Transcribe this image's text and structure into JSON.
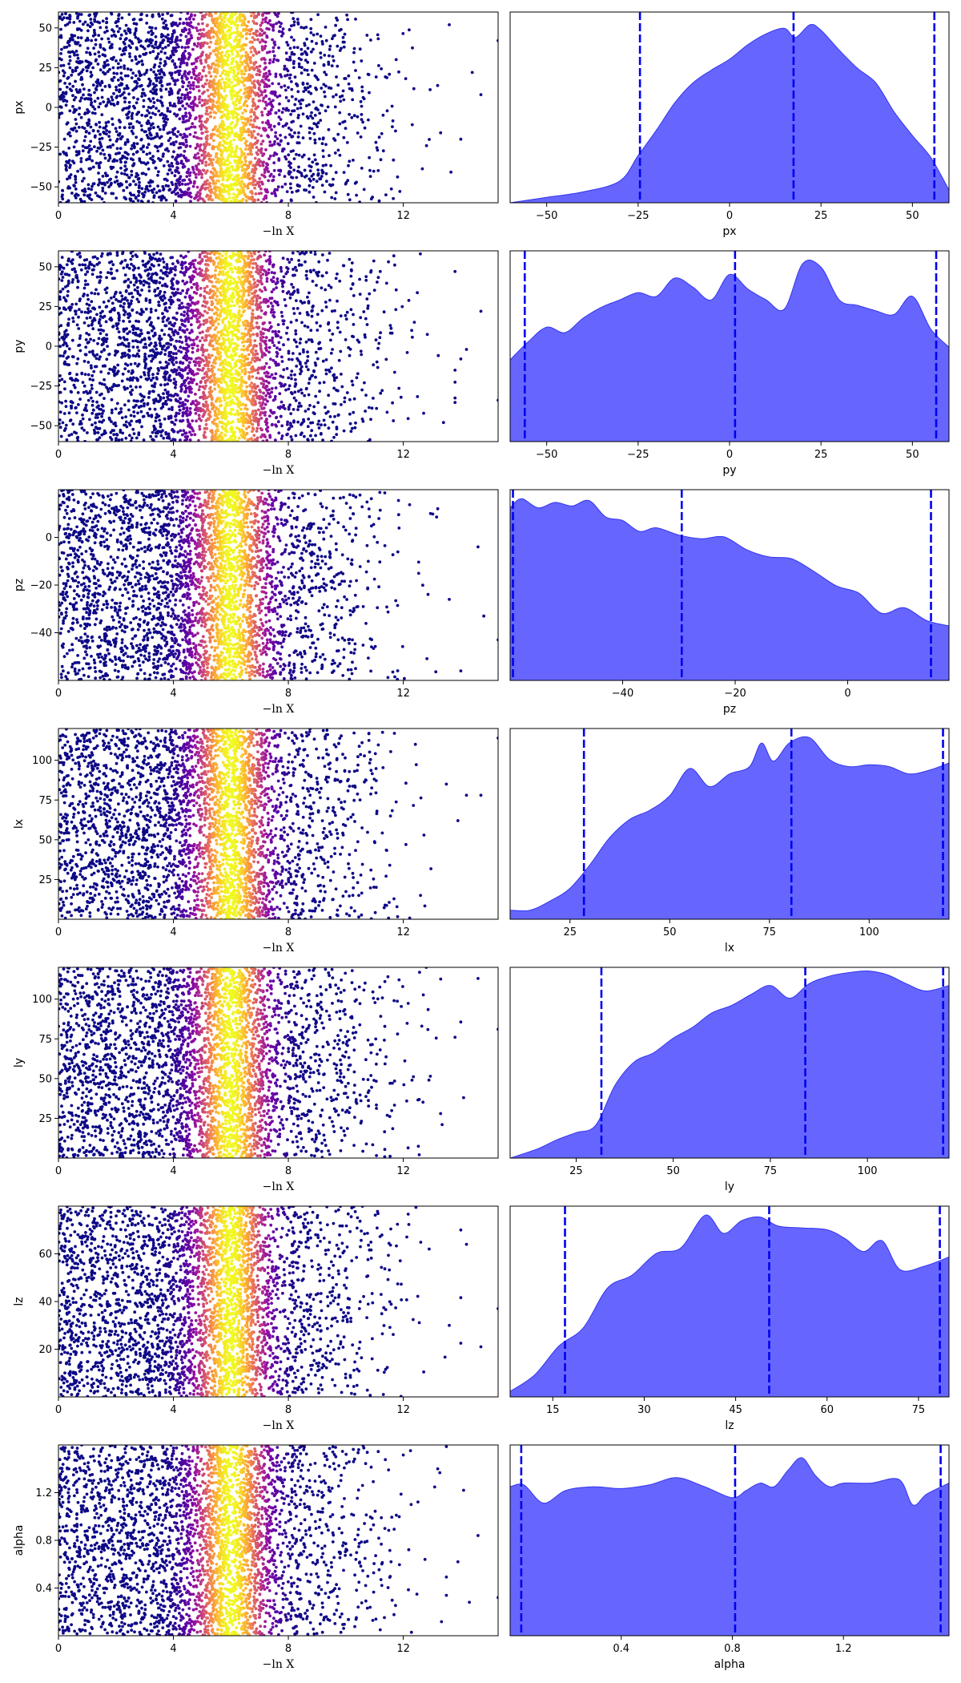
{
  "figure": {
    "background": "#ffffff",
    "n_panels": 7
  },
  "colors": {
    "kde_fill": "#6666ff",
    "kde_edge": "#3333ee",
    "quantile_line": "#0000ee",
    "scatter_colormap": "plasma",
    "scatter_low": "#0d0887",
    "scatter_high": "#f0f921"
  },
  "chart_data": [
    {
      "type": "scatter",
      "param": "px",
      "xlabel": "−ln X",
      "ylabel": "px",
      "xlim": [
        0,
        15.3
      ],
      "ylim": [
        -60,
        60
      ],
      "xticks": [
        0,
        4,
        8,
        12
      ],
      "xtick_labels": [
        "0",
        "4",
        "8",
        "12"
      ],
      "yticks": [
        -50,
        -25,
        0,
        25,
        50
      ],
      "ytick_labels": [
        "−50",
        "−25",
        "0",
        "25",
        "50"
      ],
      "x_extent": [
        0,
        14.2
      ],
      "peak_lnx": 6.0,
      "outliers": [
        [
          15.3,
          42
        ],
        [
          14.7,
          8
        ],
        [
          14.4,
          22
        ],
        [
          13.6,
          52
        ],
        [
          13.3,
          -16
        ],
        [
          14.0,
          -20
        ]
      ]
    },
    {
      "type": "area",
      "param": "px",
      "xlabel": "px",
      "xlim": [
        -60,
        60
      ],
      "xticks": [
        -50,
        -25,
        0,
        25,
        50
      ],
      "xtick_labels": [
        "−50",
        "−25",
        "0",
        "25",
        "50"
      ],
      "ylim": [
        0,
        1.05
      ],
      "density_x": [
        -60,
        -50,
        -40,
        -30,
        -25,
        -20,
        -15,
        -10,
        -5,
        0,
        5,
        10,
        15,
        18,
        22,
        25,
        30,
        35,
        40,
        45,
        50,
        55,
        60
      ],
      "density_y": [
        0.0,
        0.03,
        0.06,
        0.12,
        0.26,
        0.4,
        0.55,
        0.66,
        0.73,
        0.79,
        0.87,
        0.93,
        0.96,
        0.91,
        0.98,
        0.95,
        0.84,
        0.74,
        0.66,
        0.5,
        0.37,
        0.25,
        0.07
      ],
      "quantiles": [
        -24.5,
        17.5,
        56
      ]
    },
    {
      "type": "scatter",
      "param": "py",
      "xlabel": "−ln X",
      "ylabel": "py",
      "xlim": [
        0,
        15.3
      ],
      "ylim": [
        -60,
        60
      ],
      "xticks": [
        0,
        4,
        8,
        12
      ],
      "xtick_labels": [
        "0",
        "4",
        "8",
        "12"
      ],
      "yticks": [
        -50,
        -25,
        0,
        25,
        50
      ],
      "ytick_labels": [
        "−50",
        "−25",
        "0",
        "25",
        "50"
      ],
      "x_extent": [
        0,
        13.8
      ],
      "peak_lnx": 6.0,
      "outliers": [
        [
          15.3,
          -34
        ],
        [
          14.7,
          22
        ],
        [
          14.0,
          -8
        ],
        [
          13.8,
          47
        ],
        [
          13.4,
          -48
        ],
        [
          14.2,
          -2
        ]
      ]
    },
    {
      "type": "area",
      "param": "py",
      "xlabel": "py",
      "xlim": [
        -60,
        60
      ],
      "xticks": [
        -50,
        -25,
        0,
        25,
        50
      ],
      "xtick_labels": [
        "−50",
        "−25",
        "0",
        "25",
        "50"
      ],
      "ylim": [
        0,
        1.05
      ],
      "density_x": [
        -60,
        -55,
        -50,
        -45,
        -40,
        -35,
        -30,
        -25,
        -20,
        -15,
        -10,
        -5,
        0,
        5,
        10,
        15,
        20,
        25,
        30,
        35,
        40,
        45,
        50,
        55,
        60
      ],
      "density_y": [
        0.45,
        0.55,
        0.63,
        0.6,
        0.68,
        0.74,
        0.78,
        0.82,
        0.8,
        0.9,
        0.85,
        0.78,
        0.92,
        0.84,
        0.78,
        0.73,
        0.98,
        0.96,
        0.78,
        0.75,
        0.72,
        0.7,
        0.8,
        0.62,
        0.52
      ],
      "quantiles": [
        -56,
        1.5,
        56.5
      ]
    },
    {
      "type": "scatter",
      "param": "pz",
      "xlabel": "−ln X",
      "ylabel": "pz",
      "xlim": [
        0,
        15.3
      ],
      "ylim": [
        -60,
        20
      ],
      "xticks": [
        0,
        4,
        8,
        12
      ],
      "xtick_labels": [
        "0",
        "4",
        "8",
        "12"
      ],
      "yticks": [
        -40,
        -20,
        0
      ],
      "ytick_labels": [
        "−40",
        "−20",
        "0"
      ],
      "x_extent": [
        0,
        13.8
      ],
      "peak_lnx": 6.0,
      "outliers": [
        [
          15.3,
          -43
        ],
        [
          14.6,
          -4
        ],
        [
          14.0,
          -56
        ],
        [
          13.6,
          -26
        ],
        [
          13.2,
          12
        ],
        [
          14.8,
          -33
        ]
      ]
    },
    {
      "type": "area",
      "param": "pz",
      "xlabel": "pz",
      "xlim": [
        -60,
        18
      ],
      "xticks": [
        -40,
        -20,
        0
      ],
      "xtick_labels": [
        "−40",
        "−20",
        "0"
      ],
      "ylim": [
        0,
        1.05
      ],
      "density_x": [
        -60,
        -58,
        -55,
        -52,
        -49,
        -46,
        -43,
        -40,
        -37,
        -34,
        -30,
        -26,
        -22,
        -18,
        -14,
        -10,
        -6,
        -2,
        2,
        6,
        10,
        14,
        18
      ],
      "density_y": [
        0.95,
        1.0,
        0.95,
        0.98,
        0.96,
        0.99,
        0.9,
        0.88,
        0.82,
        0.84,
        0.8,
        0.78,
        0.79,
        0.72,
        0.68,
        0.67,
        0.6,
        0.52,
        0.48,
        0.37,
        0.4,
        0.33,
        0.3
      ],
      "quantiles": [
        -59.5,
        -29.5,
        14.8
      ]
    },
    {
      "type": "scatter",
      "param": "lx",
      "xlabel": "−ln X",
      "ylabel": "lx",
      "xlim": [
        0,
        15.3
      ],
      "ylim": [
        0,
        120
      ],
      "xticks": [
        0,
        4,
        8,
        12
      ],
      "xtick_labels": [
        "0",
        "4",
        "8",
        "12"
      ],
      "yticks": [
        25,
        50,
        75,
        100
      ],
      "ytick_labels": [
        "25",
        "50",
        "75",
        "100"
      ],
      "x_extent": [
        0,
        14.0
      ],
      "peak_lnx": 6.0,
      "outliers": [
        [
          15.3,
          114
        ],
        [
          14.7,
          78
        ],
        [
          14.2,
          78
        ],
        [
          13.5,
          85
        ],
        [
          12.6,
          15
        ],
        [
          13.9,
          62
        ]
      ]
    },
    {
      "type": "area",
      "param": "lx",
      "xlabel": "lx",
      "xlim": [
        10,
        120
      ],
      "xticks": [
        25,
        50,
        75,
        100
      ],
      "xtick_labels": [
        "25",
        "50",
        "75",
        "100"
      ],
      "ylim": [
        0,
        1.05
      ],
      "density_x": [
        10,
        15,
        20,
        25,
        30,
        35,
        40,
        45,
        50,
        55,
        60,
        65,
        70,
        73,
        76,
        80,
        85,
        90,
        95,
        100,
        105,
        110,
        115,
        120
      ],
      "density_y": [
        0.05,
        0.05,
        0.1,
        0.17,
        0.3,
        0.45,
        0.55,
        0.6,
        0.68,
        0.83,
        0.73,
        0.8,
        0.84,
        0.97,
        0.87,
        0.97,
        1.0,
        0.88,
        0.84,
        0.85,
        0.84,
        0.8,
        0.82,
        0.86
      ],
      "quantiles": [
        28.5,
        80.5,
        118.5
      ]
    },
    {
      "type": "scatter",
      "param": "ly",
      "xlabel": "−ln X",
      "ylabel": "ly",
      "xlim": [
        0,
        15.3
      ],
      "ylim": [
        0,
        120
      ],
      "xticks": [
        0,
        4,
        8,
        12
      ],
      "xtick_labels": [
        "0",
        "4",
        "8",
        "12"
      ],
      "yticks": [
        25,
        50,
        75,
        100
      ],
      "ytick_labels": [
        "25",
        "50",
        "75",
        "100"
      ],
      "x_extent": [
        0,
        14.0
      ],
      "peak_lnx": 6.0,
      "outliers": [
        [
          15.3,
          81
        ],
        [
          14.6,
          113
        ],
        [
          13.8,
          76
        ],
        [
          14.1,
          38
        ],
        [
          13.3,
          28
        ],
        [
          12.8,
          120
        ]
      ]
    },
    {
      "type": "area",
      "param": "ly",
      "xlabel": "ly",
      "xlim": [
        8,
        121
      ],
      "xticks": [
        25,
        50,
        75,
        100
      ],
      "xtick_labels": [
        "25",
        "50",
        "75",
        "100"
      ],
      "ylim": [
        0,
        1.05
      ],
      "density_x": [
        8,
        15,
        20,
        25,
        30,
        35,
        40,
        45,
        50,
        55,
        60,
        65,
        70,
        75,
        80,
        85,
        90,
        95,
        100,
        105,
        110,
        115,
        121
      ],
      "density_y": [
        0.0,
        0.05,
        0.1,
        0.14,
        0.18,
        0.4,
        0.53,
        0.58,
        0.66,
        0.72,
        0.8,
        0.84,
        0.9,
        0.95,
        0.88,
        0.96,
        1.0,
        1.02,
        1.03,
        1.01,
        0.96,
        0.92,
        0.95
      ],
      "quantiles": [
        31.5,
        84,
        119.5
      ]
    },
    {
      "type": "scatter",
      "param": "lz",
      "xlabel": "−ln X",
      "ylabel": "lz",
      "xlim": [
        0,
        15.3
      ],
      "ylim": [
        0,
        80
      ],
      "xticks": [
        0,
        4,
        8,
        12
      ],
      "xtick_labels": [
        "0",
        "4",
        "8",
        "12"
      ],
      "yticks": [
        20,
        40,
        60
      ],
      "ytick_labels": [
        "20",
        "40",
        "60"
      ],
      "x_extent": [
        0,
        14.0
      ],
      "peak_lnx": 6.0,
      "outliers": [
        [
          15.3,
          37
        ],
        [
          14.7,
          21
        ],
        [
          14.2,
          64
        ],
        [
          13.6,
          30
        ],
        [
          12.9,
          62
        ],
        [
          14.0,
          70
        ]
      ]
    },
    {
      "type": "area",
      "param": "lz",
      "xlabel": "lz",
      "xlim": [
        8,
        80
      ],
      "xticks": [
        15,
        30,
        45,
        60,
        75
      ],
      "xtick_labels": [
        "15",
        "30",
        "45",
        "60",
        "75"
      ],
      "ylim": [
        0,
        1.05
      ],
      "density_x": [
        8,
        12,
        16,
        20,
        24,
        28,
        32,
        36,
        40,
        43,
        46,
        49,
        52,
        56,
        60,
        63,
        66,
        69,
        72,
        76,
        80
      ],
      "density_y": [
        0.03,
        0.12,
        0.28,
        0.38,
        0.6,
        0.67,
        0.79,
        0.82,
        1.0,
        0.9,
        0.97,
        0.99,
        0.94,
        0.93,
        0.92,
        0.87,
        0.8,
        0.86,
        0.7,
        0.72,
        0.77
      ],
      "quantiles": [
        17,
        50.5,
        78.5
      ]
    },
    {
      "type": "scatter",
      "param": "alpha",
      "xlabel": "−ln X",
      "ylabel": "alpha",
      "xlim": [
        0,
        15.3
      ],
      "ylim": [
        0,
        1.6
      ],
      "xticks": [
        0,
        4,
        8,
        12
      ],
      "xtick_labels": [
        "0",
        "4",
        "8",
        "12"
      ],
      "yticks": [
        0.4,
        0.8,
        1.2
      ],
      "ytick_labels": [
        "0.4",
        "0.8",
        "1.2"
      ],
      "x_extent": [
        0,
        13.5
      ],
      "peak_lnx": 6.0,
      "outliers": [
        [
          15.3,
          0.32
        ],
        [
          14.6,
          0.84
        ],
        [
          14.1,
          1.22
        ],
        [
          13.2,
          1.4
        ],
        [
          13.9,
          0.62
        ],
        [
          14.3,
          0.28
        ]
      ]
    },
    {
      "type": "area",
      "param": "alpha",
      "xlabel": "alpha",
      "xlim": [
        0,
        1.58
      ],
      "xticks": [
        0.4,
        0.8,
        1.2
      ],
      "xtick_labels": [
        "0.4",
        "0.8",
        "1.2"
      ],
      "ylim": [
        0,
        1.05
      ],
      "density_x": [
        0,
        0.05,
        0.12,
        0.2,
        0.3,
        0.4,
        0.5,
        0.6,
        0.7,
        0.8,
        0.85,
        0.9,
        0.95,
        1.0,
        1.05,
        1.1,
        1.15,
        1.2,
        1.3,
        1.4,
        1.45,
        1.5,
        1.58
      ],
      "density_y": [
        0.82,
        0.83,
        0.73,
        0.8,
        0.82,
        0.81,
        0.83,
        0.87,
        0.82,
        0.76,
        0.8,
        0.84,
        0.82,
        0.91,
        0.98,
        0.88,
        0.82,
        0.84,
        0.84,
        0.86,
        0.72,
        0.78,
        0.84
      ],
      "quantiles": [
        0.04,
        0.81,
        1.55
      ]
    }
  ]
}
